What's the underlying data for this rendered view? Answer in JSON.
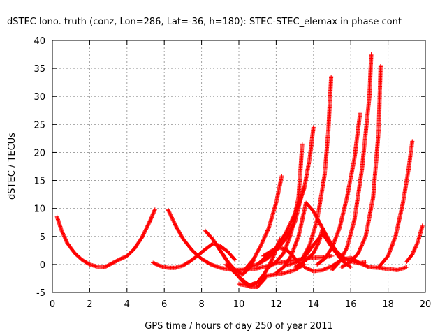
{
  "chart_data": {
    "type": "scatter",
    "title": "dSTEC Iono. truth (conz, Lon=286, Lat=-36, h=180): STEC-STEC_elemax in phase cont",
    "xlabel": "GPS time / hours of day 250 of year 2011",
    "ylabel": "dSTEC  / TECUs",
    "xlim": [
      0,
      20
    ],
    "ylim": [
      -5,
      40
    ],
    "x_ticks": [
      0,
      2,
      4,
      6,
      8,
      10,
      12,
      14,
      16,
      18,
      20
    ],
    "y_ticks": [
      -5,
      0,
      5,
      10,
      15,
      20,
      25,
      30,
      35,
      40
    ],
    "x_tick_labels": [
      "0",
      "2",
      "4",
      "6",
      "8",
      "10",
      "12",
      "14",
      "16",
      "18",
      "20"
    ],
    "y_tick_labels": [
      "-5",
      "0",
      "5",
      "10",
      "15",
      "20",
      "25",
      "30",
      "35",
      "40"
    ],
    "grid": true,
    "legend": "none",
    "marker": "plus",
    "color": "#ff0000",
    "series": [
      {
        "x": [
          0.25,
          0.5,
          0.8,
          1.2,
          1.6,
          2.0,
          2.4,
          2.8,
          3.2,
          3.6,
          4.0,
          4.4,
          4.8,
          5.2,
          5.5
        ],
        "y": [
          8.5,
          6.0,
          3.8,
          2.0,
          0.8,
          0.0,
          -0.4,
          -0.5,
          0.2,
          0.9,
          1.5,
          2.8,
          4.8,
          7.5,
          9.8
        ]
      },
      {
        "x": [
          5.4,
          5.8,
          6.2,
          6.6,
          7.0,
          7.4,
          7.8,
          8.2,
          8.6,
          9.0,
          9.4,
          9.8
        ],
        "y": [
          0.3,
          -0.3,
          -0.6,
          -0.6,
          -0.2,
          0.6,
          1.6,
          2.7,
          3.7,
          3.3,
          2.3,
          0.8
        ]
      },
      {
        "x": [
          6.2,
          6.6,
          7.0,
          7.5,
          8.0,
          8.5,
          9.0,
          9.5,
          10.0,
          10.5,
          11.0,
          11.5,
          12.0,
          12.5,
          13.0,
          13.5,
          14.0,
          14.5,
          15.0
        ],
        "y": [
          9.8,
          7.0,
          4.6,
          2.5,
          1.0,
          0.0,
          -0.6,
          -0.9,
          -1.0,
          -0.9,
          -0.7,
          -0.3,
          0.2,
          0.5,
          0.8,
          1.0,
          1.2,
          1.3,
          1.5
        ]
      },
      {
        "x": [
          8.2,
          8.6,
          9.0,
          9.4,
          9.8,
          10.2,
          10.6,
          10.8
        ],
        "y": [
          6.0,
          4.5,
          2.5,
          0.5,
          -1.0,
          -1.8,
          -0.5,
          0.8
        ]
      },
      {
        "x": [
          8.9,
          9.4,
          9.8,
          10.2,
          10.6,
          11.0,
          11.4
        ],
        "y": [
          3.0,
          0.5,
          -1.5,
          -3.0,
          -4.0,
          -4.0,
          -2.5
        ]
      },
      {
        "x": [
          9.3,
          9.8,
          10.2,
          10.6,
          11.0,
          11.4,
          11.8,
          12.2
        ],
        "y": [
          0.0,
          -1.5,
          -2.8,
          -3.8,
          -3.2,
          -1.5,
          1.0,
          4.5
        ]
      },
      {
        "x": [
          10.0,
          10.5,
          11.0,
          11.5,
          12.0,
          12.5,
          13.0,
          13.5
        ],
        "y": [
          -3.5,
          -3.8,
          -3.2,
          -2.0,
          -1.8,
          -1.5,
          -1.0,
          0.0
        ]
      },
      {
        "x": [
          10.3,
          10.8,
          11.2,
          11.6,
          12.0,
          12.3
        ],
        "y": [
          -1.0,
          1.0,
          3.5,
          6.5,
          11.0,
          15.8
        ]
      },
      {
        "x": [
          10.5,
          11.0,
          11.5,
          12.0,
          12.5,
          13.0,
          13.3,
          13.5
        ],
        "y": [
          -0.5,
          0.0,
          1.0,
          2.5,
          4.5,
          7.5,
          11.5,
          14.0
        ]
      },
      {
        "x": [
          11.0,
          11.5,
          12.0,
          12.5,
          13.0,
          13.5,
          13.8,
          14.0
        ],
        "y": [
          0.0,
          1.5,
          3.0,
          5.5,
          9.0,
          13.5,
          19.0,
          24.5
        ]
      },
      {
        "x": [
          11.3,
          11.8,
          12.2,
          12.6,
          12.9,
          13.2
        ],
        "y": [
          1.5,
          2.5,
          3.0,
          2.5,
          1.5,
          0.3
        ]
      },
      {
        "x": [
          11.6,
          12.0,
          12.4,
          12.8,
          13.2,
          13.4
        ],
        "y": [
          -0.5,
          0.5,
          2.0,
          5.5,
          12.0,
          21.5
        ]
      },
      {
        "x": [
          12.0,
          12.4,
          12.8,
          13.2,
          13.6,
          14.0,
          14.4,
          14.8,
          15.2,
          15.6,
          16.0,
          16.4,
          16.8
        ],
        "y": [
          -1.5,
          -0.5,
          1.5,
          5.0,
          11.0,
          9.5,
          7.0,
          4.5,
          2.5,
          1.2,
          0.6,
          0.2,
          0.4
        ]
      },
      {
        "x": [
          12.5,
          13.0,
          13.5,
          14.0,
          14.5,
          15.0,
          15.5,
          16.0
        ],
        "y": [
          -0.2,
          0.3,
          1.2,
          3.5,
          5.5,
          3.0,
          0.8,
          -0.5
        ]
      },
      {
        "x": [
          13.0,
          13.5,
          14.0,
          14.3,
          14.5
        ],
        "y": [
          -0.5,
          0.5,
          2.0,
          4.0,
          6.5
        ]
      },
      {
        "x": [
          13.4,
          13.8,
          14.2,
          14.6,
          14.8,
          14.95
        ],
        "y": [
          1.0,
          3.5,
          8.0,
          16.0,
          24.0,
          33.5
        ]
      },
      {
        "x": [
          13.5,
          14.0,
          14.5,
          15.0,
          15.5,
          16.0,
          16.5,
          17.0,
          17.5,
          18.0,
          18.5,
          19.0
        ],
        "y": [
          -0.5,
          -1.2,
          -1.0,
          -0.3,
          0.8,
          1.2,
          0.2,
          -0.5,
          -0.6,
          -0.8,
          -1.0,
          -0.5
        ]
      },
      {
        "x": [
          14.2,
          14.6,
          15.0,
          15.4,
          15.8,
          16.2,
          16.5
        ],
        "y": [
          0.0,
          1.0,
          3.0,
          6.5,
          12.0,
          19.0,
          27.0
        ]
      },
      {
        "x": [
          15.0,
          15.4,
          15.8,
          16.2,
          16.6,
          17.0,
          17.1
        ],
        "y": [
          -1.0,
          0.5,
          3.0,
          8.0,
          17.0,
          30.0,
          37.5
        ]
      },
      {
        "x": [
          15.5,
          16.0,
          16.4,
          16.8,
          17.2,
          17.5,
          17.6
        ],
        "y": [
          -0.5,
          0.5,
          2.0,
          5.0,
          12.0,
          24.0,
          35.5
        ]
      },
      {
        "x": [
          17.5,
          18.0,
          18.4,
          18.8,
          19.1,
          19.3
        ],
        "y": [
          -0.5,
          1.5,
          5.0,
          11.0,
          17.0,
          22.0
        ]
      },
      {
        "x": [
          19.0,
          19.3,
          19.6,
          19.85
        ],
        "y": [
          0.5,
          1.8,
          4.0,
          7.0
        ]
      }
    ]
  }
}
